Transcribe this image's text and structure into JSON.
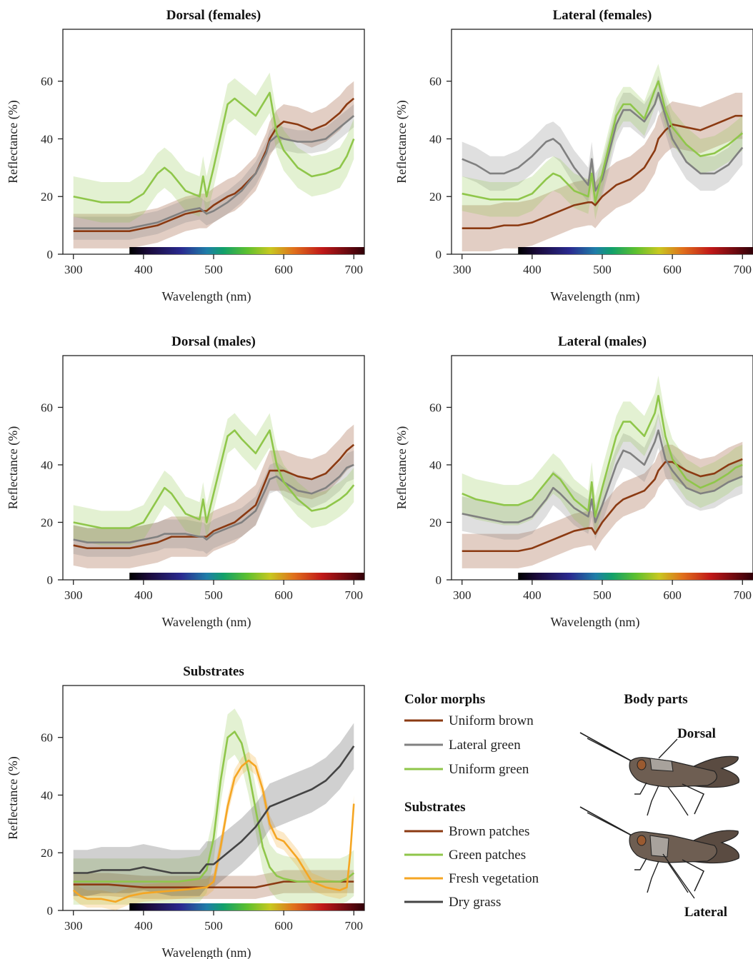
{
  "chart_data": [
    {
      "type": "line",
      "title": "Dorsal (females)",
      "xlabel": "Wavelength (nm)",
      "ylabel": "Reflectance (%)",
      "xlim": [
        285,
        715
      ],
      "ylim": [
        0,
        78
      ],
      "xticks": [
        300,
        400,
        500,
        600,
        700
      ],
      "yticks": [
        0,
        20,
        40,
        60
      ],
      "x": [
        300,
        320,
        340,
        360,
        380,
        400,
        420,
        430,
        440,
        460,
        480,
        485,
        490,
        500,
        520,
        530,
        540,
        560,
        575,
        580,
        590,
        600,
        620,
        640,
        660,
        680,
        690,
        700
      ],
      "series": [
        {
          "name": "Uniform brown",
          "color": "#8B3A12",
          "band": 6,
          "values": [
            8,
            8,
            8,
            8,
            8,
            9,
            10,
            11,
            12,
            14,
            15,
            15,
            15,
            17,
            20,
            21,
            23,
            28,
            36,
            40,
            44,
            46,
            45,
            43,
            45,
            49,
            52,
            54
          ]
        },
        {
          "name": "Lateral green",
          "color": "#808080",
          "band": 4,
          "values": [
            9,
            9,
            9,
            9,
            9,
            10,
            11,
            12,
            13,
            15,
            16,
            15,
            14,
            15,
            18,
            20,
            22,
            28,
            35,
            39,
            41,
            40,
            39,
            39,
            40,
            44,
            46,
            48
          ]
        },
        {
          "name": "Uniform green",
          "color": "#8FC64A",
          "band": 7,
          "values": [
            20,
            19,
            18,
            18,
            18,
            21,
            28,
            30,
            28,
            22,
            20,
            27,
            20,
            30,
            52,
            54,
            52,
            48,
            54,
            56,
            42,
            36,
            30,
            27,
            28,
            30,
            34,
            40
          ]
        }
      ]
    },
    {
      "type": "line",
      "title": "Lateral (females)",
      "xlabel": "Wavelength (nm)",
      "ylabel": "Reflectance (%)",
      "xlim": [
        285,
        715
      ],
      "ylim": [
        0,
        78
      ],
      "xticks": [
        300,
        400,
        500,
        600,
        700
      ],
      "yticks": [
        0,
        20,
        40,
        60
      ],
      "x": [
        300,
        320,
        340,
        360,
        380,
        400,
        420,
        430,
        440,
        460,
        480,
        485,
        490,
        500,
        520,
        530,
        540,
        560,
        575,
        580,
        590,
        600,
        620,
        640,
        660,
        680,
        690,
        700
      ],
      "series": [
        {
          "name": "Uniform brown",
          "color": "#8B3A12",
          "band": 8,
          "values": [
            9,
            9,
            9,
            10,
            10,
            11,
            13,
            14,
            15,
            17,
            18,
            18,
            17,
            20,
            24,
            25,
            26,
            30,
            36,
            40,
            43,
            45,
            44,
            43,
            45,
            47,
            48,
            48
          ]
        },
        {
          "name": "Lateral green",
          "color": "#808080",
          "band": 6,
          "values": [
            33,
            31,
            28,
            28,
            30,
            34,
            39,
            40,
            38,
            30,
            24,
            33,
            22,
            26,
            45,
            50,
            50,
            46,
            52,
            56,
            48,
            40,
            32,
            28,
            28,
            31,
            34,
            37
          ]
        },
        {
          "name": "Uniform green",
          "color": "#8FC64A",
          "band": 6,
          "values": [
            21,
            20,
            19,
            19,
            19,
            21,
            26,
            28,
            27,
            22,
            20,
            28,
            18,
            28,
            48,
            52,
            52,
            47,
            57,
            60,
            50,
            44,
            38,
            34,
            35,
            38,
            40,
            42
          ]
        }
      ]
    },
    {
      "type": "line",
      "title": "Dorsal (males)",
      "xlabel": "Wavelength (nm)",
      "ylabel": "Reflectance (%)",
      "xlim": [
        285,
        715
      ],
      "ylim": [
        0,
        78
      ],
      "xticks": [
        300,
        400,
        500,
        600,
        700
      ],
      "yticks": [
        0,
        20,
        40,
        60
      ],
      "x": [
        300,
        320,
        340,
        360,
        380,
        400,
        420,
        430,
        440,
        460,
        480,
        485,
        490,
        500,
        520,
        530,
        540,
        560,
        575,
        580,
        590,
        600,
        620,
        640,
        660,
        680,
        690,
        700
      ],
      "series": [
        {
          "name": "Uniform brown",
          "color": "#8B3A12",
          "band": 7,
          "values": [
            12,
            11,
            11,
            11,
            11,
            12,
            13,
            14,
            15,
            15,
            15,
            15,
            15,
            17,
            19,
            20,
            22,
            26,
            35,
            38,
            38,
            38,
            36,
            35,
            37,
            42,
            45,
            47
          ]
        },
        {
          "name": "Lateral green",
          "color": "#808080",
          "band": 5,
          "values": [
            14,
            13,
            13,
            13,
            13,
            14,
            15,
            16,
            16,
            16,
            15,
            15,
            14,
            16,
            18,
            19,
            20,
            24,
            32,
            35,
            36,
            34,
            31,
            30,
            32,
            36,
            39,
            40
          ]
        },
        {
          "name": "Uniform green",
          "color": "#8FC64A",
          "band": 6,
          "values": [
            20,
            19,
            18,
            18,
            18,
            20,
            28,
            32,
            30,
            23,
            21,
            28,
            20,
            30,
            50,
            52,
            49,
            44,
            50,
            52,
            40,
            34,
            28,
            24,
            25,
            28,
            30,
            33
          ]
        }
      ]
    },
    {
      "type": "line",
      "title": "Lateral (males)",
      "xlabel": "Wavelength (nm)",
      "ylabel": "Reflectance (%)",
      "xlim": [
        285,
        715
      ],
      "ylim": [
        0,
        78
      ],
      "xticks": [
        300,
        400,
        500,
        600,
        700
      ],
      "yticks": [
        0,
        20,
        40,
        60
      ],
      "x": [
        300,
        320,
        340,
        360,
        380,
        400,
        420,
        430,
        440,
        460,
        480,
        485,
        490,
        500,
        520,
        530,
        540,
        560,
        575,
        580,
        590,
        600,
        620,
        640,
        660,
        680,
        690,
        700
      ],
      "series": [
        {
          "name": "Uniform brown",
          "color": "#8B3A12",
          "band": 6,
          "values": [
            10,
            10,
            10,
            10,
            10,
            11,
            13,
            14,
            15,
            17,
            18,
            18,
            16,
            20,
            26,
            28,
            29,
            31,
            35,
            38,
            41,
            41,
            38,
            36,
            37,
            40,
            41,
            42
          ]
        },
        {
          "name": "Lateral green",
          "color": "#808080",
          "band": 6,
          "values": [
            23,
            22,
            21,
            20,
            20,
            22,
            28,
            32,
            30,
            25,
            22,
            28,
            20,
            26,
            40,
            45,
            44,
            40,
            48,
            52,
            42,
            38,
            32,
            30,
            31,
            34,
            35,
            36
          ]
        },
        {
          "name": "Uniform green",
          "color": "#8FC64A",
          "band": 7,
          "values": [
            30,
            28,
            27,
            26,
            26,
            28,
            34,
            37,
            35,
            28,
            24,
            34,
            22,
            32,
            50,
            55,
            55,
            50,
            58,
            64,
            50,
            42,
            35,
            32,
            34,
            37,
            39,
            40
          ]
        }
      ]
    },
    {
      "type": "line",
      "title": "Substrates",
      "xlabel": "Wavelength (nm)",
      "ylabel": "Reflectance (%)",
      "xlim": [
        285,
        715
      ],
      "ylim": [
        0,
        78
      ],
      "xticks": [
        300,
        400,
        500,
        600,
        700
      ],
      "yticks": [
        0,
        20,
        40,
        60
      ],
      "series": [
        {
          "name": "Brown patches",
          "color": "#8B3A12",
          "band": 4,
          "x": [
            300,
            350,
            400,
            450,
            500,
            520,
            540,
            560,
            580,
            600,
            620,
            650,
            680,
            700
          ],
          "values": [
            9,
            9,
            8,
            8,
            8,
            8,
            8,
            8,
            9,
            10,
            10,
            10,
            10,
            10
          ]
        },
        {
          "name": "Green patches",
          "color": "#8FC64A",
          "band": 8,
          "x": [
            300,
            350,
            400,
            450,
            480,
            490,
            500,
            510,
            520,
            530,
            540,
            550,
            560,
            570,
            580,
            590,
            600,
            620,
            640,
            660,
            680,
            690,
            700
          ],
          "values": [
            10,
            10,
            10,
            10,
            11,
            14,
            25,
            45,
            60,
            62,
            58,
            48,
            35,
            22,
            15,
            12,
            11,
            10,
            10,
            10,
            10,
            11,
            13
          ]
        },
        {
          "name": "Fresh vegetation",
          "color": "#F5A623",
          "band": 3,
          "x": [
            300,
            310,
            320,
            340,
            360,
            380,
            400,
            450,
            490,
            500,
            510,
            520,
            530,
            540,
            550,
            560,
            570,
            580,
            590,
            600,
            620,
            640,
            660,
            680,
            690,
            695,
            700
          ],
          "values": [
            7,
            5,
            4,
            4,
            3,
            5,
            6,
            7,
            8,
            10,
            22,
            36,
            46,
            50,
            52,
            50,
            42,
            30,
            25,
            24,
            18,
            10,
            8,
            7,
            8,
            20,
            37
          ]
        },
        {
          "name": "Dry grass",
          "color": "#444444",
          "band": 8,
          "x": [
            300,
            320,
            340,
            360,
            380,
            400,
            420,
            440,
            460,
            480,
            490,
            500,
            520,
            540,
            560,
            580,
            600,
            620,
            640,
            660,
            680,
            700
          ],
          "values": [
            13,
            13,
            14,
            14,
            14,
            15,
            14,
            13,
            13,
            13,
            16,
            16,
            20,
            24,
            29,
            36,
            38,
            40,
            42,
            45,
            50,
            57
          ]
        }
      ]
    }
  ],
  "legend": {
    "morphs_heading": "Color morphs",
    "morphs": [
      {
        "label": "Uniform brown",
        "color": "#8B3A12"
      },
      {
        "label": "Lateral green",
        "color": "#808080"
      },
      {
        "label": "Uniform green",
        "color": "#8FC64A"
      }
    ],
    "substrates_heading": "Substrates",
    "substrates": [
      {
        "label": "Brown patches",
        "color": "#8B3A12"
      },
      {
        "label": "Green patches",
        "color": "#8FC64A"
      },
      {
        "label": "Fresh vegetation",
        "color": "#F5A623"
      },
      {
        "label": "Dry grass",
        "color": "#444444"
      }
    ]
  },
  "body_parts": {
    "heading": "Body parts",
    "dorsal_label": "Dorsal",
    "lateral_label": "Lateral"
  },
  "spectrum_bar": {
    "start_nm": 380,
    "end_nm": 715
  }
}
